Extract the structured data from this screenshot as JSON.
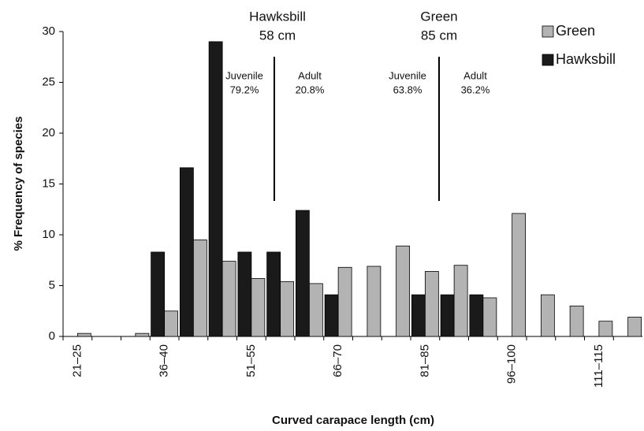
{
  "chart_data": {
    "type": "bar",
    "ylabel": "% Frequency of species",
    "xlabel": "Curved carapace length (cm)",
    "categories": [
      "21–25",
      null,
      null,
      "36–40",
      null,
      null,
      "51–55",
      null,
      null,
      "66–70",
      null,
      null,
      "81–85",
      null,
      null,
      "96–100",
      null,
      null,
      "111–115",
      null
    ],
    "series": [
      {
        "name": "Hawksbill",
        "color": "#1a1a1a",
        "values": [
          0,
          0,
          0,
          8.3,
          16.6,
          29,
          8.3,
          8.3,
          12.4,
          4.1,
          0,
          0,
          4.1,
          4.1,
          4.1,
          0,
          0,
          0,
          0,
          0
        ]
      },
      {
        "name": "Green",
        "color": "#b3b3b3",
        "values": [
          0.3,
          0,
          0.3,
          2.5,
          9.5,
          7.4,
          5.7,
          5.4,
          5.2,
          6.8,
          6.9,
          8.9,
          6.4,
          7.0,
          3.8,
          12.1,
          4.1,
          3.0,
          1.5,
          1.9
        ]
      }
    ],
    "legend_order": [
      1,
      0
    ],
    "ylim": [
      0,
      30
    ],
    "yticks": [
      0,
      5,
      10,
      15,
      20,
      25,
      30
    ],
    "annotations": [
      [
        "Hawksbill",
        "58 cm"
      ],
      [
        "Green",
        "85 cm"
      ],
      [
        "Juvenile",
        "79.2%"
      ],
      [
        "Adult",
        "20.8%"
      ],
      [
        "Juvenile",
        "63.8%"
      ],
      [
        "Adult",
        "36.2%"
      ]
    ]
  }
}
